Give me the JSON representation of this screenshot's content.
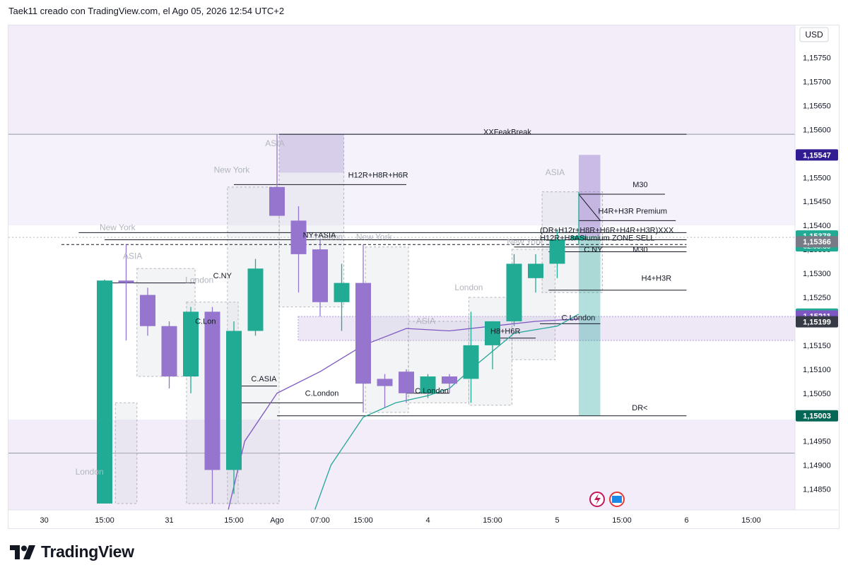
{
  "header": {
    "title": "Taek11 creado con TradingView.com, el Ago 05, 2026 12:54 UTC+2"
  },
  "brand": {
    "name": "TradingView",
    "logo_icon": "tradingview-logo-icon"
  },
  "currency": "USD",
  "colors": {
    "up": "#22ab94",
    "down": "#9575cd",
    "session_box": "#d1d4dc",
    "background_band": "#ede7f6",
    "line": "#131722",
    "ma_purple": "#7e57c2",
    "ma_teal": "#26a69a",
    "axis_text": "#131722",
    "session_text": "#b2b5be"
  },
  "chart_data": {
    "type": "candlestick",
    "title": "",
    "ylim": [
      1.1482,
      1.158
    ],
    "y_ticks": [
      "1,15750",
      "1,15700",
      "1,15650",
      "1,15600",
      "1,15550",
      "1,15500",
      "1,15450",
      "1,15400",
      "1,15350",
      "1,15300",
      "1,15250",
      "1,15200",
      "1,15150",
      "1,15100",
      "1,15050",
      "1,15000",
      "1,14950",
      "1,14900",
      "1,14850"
    ],
    "y_tick_values": [
      1.1575,
      1.157,
      1.1565,
      1.156,
      1.1555,
      1.155,
      1.1545,
      1.154,
      1.1535,
      1.153,
      1.1525,
      1.152,
      1.1515,
      1.151,
      1.1505,
      1.15,
      1.1495,
      1.149,
      1.1485
    ],
    "x_ticks": [
      {
        "label": "30",
        "slot": -2.8
      },
      {
        "label": "15:00",
        "slot": 0
      },
      {
        "label": "31",
        "slot": 3
      },
      {
        "label": "15:00",
        "slot": 6
      },
      {
        "label": "Ago",
        "slot": 8
      },
      {
        "label": "07:00",
        "slot": 10
      },
      {
        "label": "15:00",
        "slot": 12
      },
      {
        "label": "4",
        "slot": 15
      },
      {
        "label": "15:00",
        "slot": 18
      },
      {
        "label": "5",
        "slot": 21
      },
      {
        "label": "15:00",
        "slot": 24
      },
      {
        "label": "6",
        "slot": 27
      },
      {
        "label": "15:00",
        "slot": 30
      }
    ],
    "candles": [
      {
        "o": 1.1482,
        "h": 1.15287,
        "l": 1.1482,
        "c": 1.15285
      },
      {
        "o": 1.15285,
        "h": 1.1536,
        "l": 1.1516,
        "c": 1.1528
      },
      {
        "o": 1.15255,
        "h": 1.1527,
        "l": 1.1517,
        "c": 1.1519
      },
      {
        "o": 1.1519,
        "h": 1.152,
        "l": 1.1506,
        "c": 1.15085
      },
      {
        "o": 1.15085,
        "h": 1.1523,
        "l": 1.1505,
        "c": 1.1522
      },
      {
        "o": 1.1522,
        "h": 1.1523,
        "l": 1.1482,
        "c": 1.1489
      },
      {
        "o": 1.1489,
        "h": 1.152,
        "l": 1.1484,
        "c": 1.1518
      },
      {
        "o": 1.1518,
        "h": 1.1533,
        "l": 1.1517,
        "c": 1.1531
      },
      {
        "o": 1.1548,
        "h": 1.1559,
        "l": 1.1542,
        "c": 1.1542
      },
      {
        "o": 1.1541,
        "h": 1.1544,
        "l": 1.1526,
        "c": 1.1534
      },
      {
        "o": 1.1535,
        "h": 1.1537,
        "l": 1.1521,
        "c": 1.1524
      },
      {
        "o": 1.1524,
        "h": 1.1532,
        "l": 1.1518,
        "c": 1.1528
      },
      {
        "o": 1.1528,
        "h": 1.1536,
        "l": 1.1501,
        "c": 1.1507
      },
      {
        "o": 1.1508,
        "h": 1.1509,
        "l": 1.1502,
        "c": 1.15065
      },
      {
        "o": 1.15095,
        "h": 1.151,
        "l": 1.1503,
        "c": 1.1505
      },
      {
        "o": 1.1505,
        "h": 1.1509,
        "l": 1.1504,
        "c": 1.15085
      },
      {
        "o": 1.15085,
        "h": 1.1509,
        "l": 1.1505,
        "c": 1.1507
      },
      {
        "o": 1.1508,
        "h": 1.1522,
        "l": 1.1503,
        "c": 1.1515
      },
      {
        "o": 1.1515,
        "h": 1.152,
        "l": 1.151,
        "c": 1.152
      },
      {
        "o": 1.152,
        "h": 1.1534,
        "l": 1.1519,
        "c": 1.1532
      },
      {
        "o": 1.1529,
        "h": 1.1534,
        "l": 1.1526,
        "c": 1.1532
      },
      {
        "o": 1.1532,
        "h": 1.1539,
        "l": 1.1529,
        "c": 1.1537
      },
      {
        "o": 1.1537,
        "h": 1.1547,
        "l": 1.1536,
        "c": 1.15378
      }
    ],
    "series": [
      {
        "type": "moving-average",
        "color": "#7e57c2",
        "points": [
          [
            5.7,
            1.148
          ],
          [
            6.5,
            1.1495
          ],
          [
            8,
            1.1505
          ],
          [
            10,
            1.15095
          ],
          [
            12,
            1.1515
          ],
          [
            14,
            1.15185
          ],
          [
            16,
            1.1518
          ],
          [
            18,
            1.1519
          ],
          [
            20,
            1.152
          ],
          [
            22,
            1.15205
          ]
        ]
      },
      {
        "type": "moving-average",
        "color": "#26a69a",
        "points": [
          [
            9.7,
            1.148
          ],
          [
            10.5,
            1.149
          ],
          [
            12,
            1.15
          ],
          [
            13.5,
            1.1503
          ],
          [
            15,
            1.15045
          ],
          [
            16,
            1.1506
          ],
          [
            17,
            1.151
          ],
          [
            19,
            1.15175
          ],
          [
            21,
            1.1519
          ],
          [
            22,
            1.15215
          ]
        ]
      }
    ],
    "price_tags": [
      {
        "value": 1.15547,
        "label": "1,15547",
        "color": "#311b92"
      },
      {
        "value": 1.15378,
        "label": "1,15378",
        "color": "#22ab94",
        "sub": "02:05:30"
      },
      {
        "value": 1.15366,
        "label": "1,15366",
        "color": "#787b86"
      },
      {
        "value": 1.15215,
        "label": "1,15215",
        "color": "#22ab94"
      },
      {
        "value": 1.15211,
        "label": "1,15211",
        "color": "#7e57c2"
      },
      {
        "value": 1.15199,
        "label": "1,15199",
        "color": "#363a45"
      },
      {
        "value": 1.15003,
        "label": "1,15003",
        "color": "#056656"
      }
    ],
    "session_labels": [
      {
        "text": "ASIA",
        "slot": 7.9,
        "value": 1.15565
      },
      {
        "text": "New York",
        "slot": 5.9,
        "value": 1.1551
      },
      {
        "text": "ASIA",
        "slot": 20.9,
        "value": 1.15505
      },
      {
        "text": "New York",
        "slot": 0.6,
        "value": 1.1539
      },
      {
        "text": "New York",
        "slot": 12.5,
        "value": 1.1537
      },
      {
        "text": "London",
        "slot": 10.4,
        "value": 1.1537
      },
      {
        "text": "New York",
        "slot": 19.5,
        "value": 1.1536
      },
      {
        "text": "ASIA",
        "slot": 1.3,
        "value": 1.1533
      },
      {
        "text": "London",
        "slot": 4.4,
        "value": 1.1528
      },
      {
        "text": "London",
        "slot": 16.9,
        "value": 1.15265
      },
      {
        "text": "ASIA",
        "slot": 14.9,
        "value": 1.15195
      },
      {
        "text": "London",
        "slot": -0.7,
        "value": 1.1488
      }
    ],
    "annotations": [
      {
        "text": "XXFeakBreak",
        "value": 1.15585
      },
      {
        "text": "H12R+H8R+H6R",
        "value": 1.15495
      },
      {
        "text": "M30",
        "value": 1.15475
      },
      {
        "text": "H4R+H3R Premium",
        "value": 1.1542
      },
      {
        "text": "(DR+H12r+H8R+H6R+H4R+H3R)XXX",
        "value": 1.1538
      },
      {
        "text": "H12R+H8ASiumium ZONE SELL",
        "value": 1.15364
      },
      {
        "text": "NY+ASIA",
        "value": 1.1537
      },
      {
        "text": "C.NY",
        "value": 1.1534
      },
      {
        "text": "M30",
        "value": 1.1534
      },
      {
        "text": "C.NY",
        "value": 1.15285
      },
      {
        "text": "H4+H3R",
        "value": 1.1528
      },
      {
        "text": "C.London",
        "value": 1.15198
      },
      {
        "text": "C.Lon",
        "value": 1.1519
      },
      {
        "text": "H8+H6R",
        "value": 1.1517
      },
      {
        "text": "C.ASIA",
        "value": 1.1507
      },
      {
        "text": "C.London",
        "value": 1.1504
      },
      {
        "text": "C.London",
        "value": 1.15045
      },
      {
        "text": "DR<",
        "value": 1.1501
      }
    ]
  }
}
